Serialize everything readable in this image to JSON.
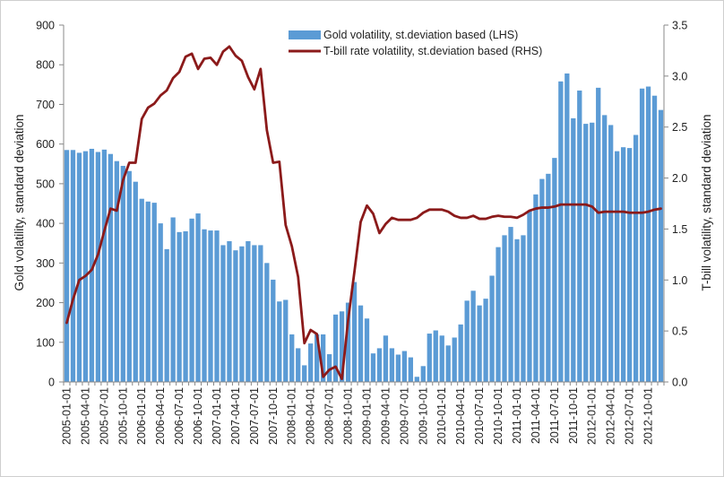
{
  "chart_data": {
    "type": "bar+line",
    "title": "",
    "xlabel": "",
    "ylabel_left": "Gold volatility, standard deviation",
    "ylabel_right": "T-bill volatility, standard deviation",
    "ylim_left": [
      0,
      900
    ],
    "ylim_right": [
      0,
      3.5
    ],
    "yticks_left": [
      "0",
      "100",
      "200",
      "300",
      "400",
      "500",
      "600",
      "700",
      "800",
      "900"
    ],
    "yticks_right": [
      "0.0",
      "0.5",
      "1.0",
      "1.5",
      "2.0",
      "2.5",
      "3.0",
      "3.5"
    ],
    "xtick_labels": [
      "2005-01-01",
      "2005-04-01",
      "2005-07-01",
      "2005-10-01",
      "2006-01-01",
      "2006-04-01",
      "2006-07-01",
      "2006-10-01",
      "2007-01-01",
      "2007-04-01",
      "2007-07-01",
      "2007-10-01",
      "2008-01-01",
      "2008-04-01",
      "2008-07-01",
      "2008-10-01",
      "2009-01-01",
      "2009-04-01",
      "2009-07-01",
      "2009-10-01",
      "2010-01-01",
      "2010-04-01",
      "2010-07-01",
      "2010-10-01",
      "2011-01-01",
      "2011-04-01",
      "2011-07-01",
      "2011-10-01",
      "2012-01-01",
      "2012-04-01",
      "2012-07-01",
      "2012-10-01"
    ],
    "legend": [
      "Gold volatility, st.deviation based (LHS)",
      "T-bill rate volatility, st.deviation based (RHS)"
    ],
    "legend_position": "top-center",
    "series": [
      {
        "name": "Gold volatility, st.deviation based (LHS)",
        "axis": "left",
        "type": "bar",
        "color": "#5b9bd5",
        "values": [
          585,
          585,
          578,
          582,
          588,
          580,
          586,
          575,
          557,
          545,
          532,
          505,
          462,
          455,
          452,
          400,
          335,
          415,
          378,
          380,
          412,
          425,
          385,
          382,
          382,
          345,
          355,
          332,
          342,
          355,
          345,
          345,
          300,
          258,
          203,
          207,
          120,
          85,
          42,
          97,
          120,
          120,
          70,
          170,
          178,
          200,
          252,
          193,
          160,
          72,
          85,
          117,
          85,
          69,
          78,
          62,
          13,
          40,
          122,
          130,
          117,
          92,
          112,
          145,
          205,
          230,
          193,
          210,
          268,
          340,
          370,
          391,
          360,
          370,
          432,
          473,
          512,
          525,
          565,
          758,
          778,
          665,
          735,
          651,
          654,
          742,
          673,
          648,
          582,
          592,
          590,
          623,
          740,
          745,
          722,
          686
        ]
      },
      {
        "name": "T-bill rate volatility, st.deviation based (RHS)",
        "axis": "right",
        "type": "line",
        "color": "#8b1a1a",
        "values": [
          0.58,
          0.81,
          1.0,
          1.04,
          1.1,
          1.25,
          1.48,
          1.7,
          1.68,
          1.98,
          2.15,
          2.15,
          2.58,
          2.69,
          2.73,
          2.81,
          2.86,
          2.98,
          3.04,
          3.19,
          3.22,
          3.07,
          3.17,
          3.18,
          3.11,
          3.24,
          3.29,
          3.2,
          3.15,
          2.99,
          2.87,
          3.07,
          2.47,
          2.15,
          2.16,
          1.54,
          1.33,
          1.03,
          0.38,
          0.51,
          0.47,
          0.05,
          0.12,
          0.15,
          0.03,
          0.61,
          1.08,
          1.57,
          1.73,
          1.65,
          1.46,
          1.55,
          1.61,
          1.59,
          1.59,
          1.59,
          1.61,
          1.66,
          1.69,
          1.69,
          1.69,
          1.67,
          1.63,
          1.61,
          1.61,
          1.63,
          1.6,
          1.6,
          1.62,
          1.63,
          1.62,
          1.62,
          1.61,
          1.64,
          1.68,
          1.7,
          1.71,
          1.71,
          1.72,
          1.74,
          1.74,
          1.74,
          1.74,
          1.74,
          1.72,
          1.66,
          1.67,
          1.67,
          1.67,
          1.67,
          1.66,
          1.66,
          1.66,
          1.67,
          1.69,
          1.7
        ]
      }
    ]
  }
}
